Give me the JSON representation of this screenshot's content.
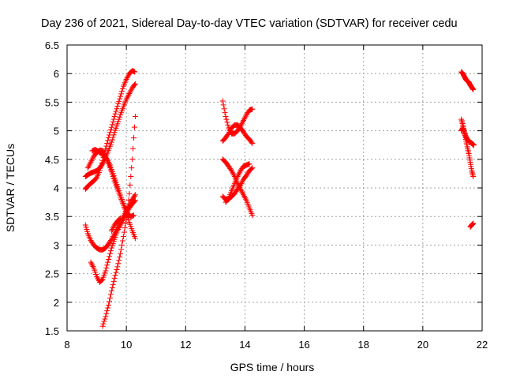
{
  "chart_data": {
    "type": "scatter",
    "title": "Day 236 of 2021, Sidereal Day-to-day VTEC variation (SDTVAR) for receiver cedu",
    "xlabel": "GPS time / hours",
    "ylabel": "SDTVAR / TECUs",
    "xlim": [
      8,
      22
    ],
    "ylim": [
      1.5,
      6.5
    ],
    "xticks": [
      "8",
      "10",
      "12",
      "14",
      "16",
      "18",
      "20",
      "22"
    ],
    "yticks": [
      "1.5",
      "2",
      "2.5",
      "3",
      "3.5",
      "4",
      "4.5",
      "5",
      "5.5",
      "6",
      "6.5"
    ],
    "grid": true,
    "marker": "plus",
    "color": "#ff0000",
    "series": [
      {
        "x": [
          8.62,
          8.7,
          8.8,
          8.9,
          9.0,
          9.1,
          9.2,
          9.3,
          9.4,
          9.5,
          9.6,
          9.7,
          9.8,
          9.9,
          10.0,
          10.1,
          10.2,
          10.28
        ],
        "y": [
          3.98,
          4.03,
          4.08,
          4.12,
          4.18,
          4.3,
          4.48,
          4.68,
          4.88,
          5.06,
          5.25,
          5.43,
          5.6,
          5.78,
          5.9,
          6.0,
          6.05,
          6.03
        ]
      },
      {
        "x": [
          8.62,
          8.7,
          8.8,
          8.9,
          9.0,
          9.1,
          9.2,
          9.3,
          9.4,
          9.5,
          9.6,
          9.7,
          9.8,
          9.9,
          10.0,
          10.1,
          10.2,
          10.3
        ],
        "y": [
          4.2,
          4.23,
          4.26,
          4.28,
          4.3,
          4.35,
          4.42,
          4.53,
          4.66,
          4.8,
          4.97,
          5.12,
          5.28,
          5.42,
          5.55,
          5.65,
          5.75,
          5.82
        ]
      },
      {
        "x": [
          8.7,
          8.8,
          8.9,
          9.0,
          9.1,
          9.2,
          9.3,
          9.4,
          9.5,
          9.6,
          9.7,
          9.8,
          9.9,
          10.0,
          10.1,
          10.2,
          10.3
        ],
        "y": [
          4.35,
          4.45,
          4.55,
          4.62,
          4.66,
          4.65,
          4.55,
          4.42,
          4.28,
          4.12,
          3.98,
          3.84,
          3.7,
          3.56,
          3.4,
          3.25,
          3.12
        ]
      },
      {
        "x": [
          8.85,
          8.95,
          9.05,
          9.15,
          9.25,
          9.35,
          9.45,
          9.55,
          9.65,
          9.75,
          9.85,
          9.95,
          10.05,
          10.15,
          10.25
        ],
        "y": [
          4.65,
          4.67,
          4.64,
          4.6,
          4.56,
          4.5,
          4.4,
          4.25,
          4.1,
          3.95,
          3.8,
          3.66,
          3.55,
          3.5,
          3.52
        ]
      },
      {
        "x": [
          8.62,
          8.7,
          8.8,
          8.9,
          9.0,
          9.1,
          9.2,
          9.3,
          9.4,
          9.5,
          9.6,
          9.7,
          9.8,
          9.9,
          10.0,
          10.1,
          10.2,
          10.3
        ],
        "y": [
          3.35,
          3.2,
          3.08,
          3.0,
          2.95,
          2.92,
          2.92,
          2.95,
          3.02,
          3.1,
          3.2,
          3.3,
          3.4,
          3.5,
          3.6,
          3.7,
          3.8,
          3.88
        ]
      },
      {
        "x": [
          8.8,
          8.9,
          9.0,
          9.1,
          9.2,
          9.3,
          9.4,
          9.5,
          9.6,
          9.7,
          9.8,
          9.9,
          10.0,
          10.1,
          10.2,
          10.3
        ],
        "y": [
          2.7,
          2.6,
          2.45,
          2.35,
          2.4,
          2.55,
          2.75,
          2.95,
          3.1,
          3.25,
          3.35,
          3.45,
          3.55,
          3.65,
          3.72,
          3.78
        ]
      },
      {
        "x": [
          9.2,
          9.3,
          9.4,
          9.5,
          9.6,
          9.7,
          9.8,
          9.9,
          10.0,
          10.1,
          10.2,
          10.3
        ],
        "y": [
          1.58,
          1.75,
          1.95,
          2.2,
          2.42,
          2.62,
          2.85,
          3.15,
          3.45,
          3.9,
          4.5,
          5.25
        ]
      },
      {
        "x": [
          9.5,
          9.6,
          9.7,
          9.8
        ],
        "y": [
          3.25,
          3.35,
          3.42,
          3.47
        ]
      },
      {
        "x": [
          13.25,
          13.35,
          13.45,
          13.55,
          13.65,
          13.75,
          13.85,
          13.95,
          14.05,
          14.15,
          14.25
        ],
        "y": [
          5.52,
          5.25,
          5.05,
          4.95,
          4.95,
          5.0,
          5.08,
          5.18,
          5.28,
          5.36,
          5.38
        ]
      },
      {
        "x": [
          13.25,
          13.35,
          13.45,
          13.55,
          13.65,
          13.75,
          13.85,
          13.95,
          14.05,
          14.15,
          14.25
        ],
        "y": [
          4.82,
          4.88,
          4.95,
          5.05,
          5.1,
          5.1,
          5.05,
          4.98,
          4.9,
          4.85,
          4.78
        ]
      },
      {
        "x": [
          13.25,
          13.35,
          13.45,
          13.55,
          13.65,
          13.75,
          13.85,
          13.95,
          14.05,
          14.15,
          14.25
        ],
        "y": [
          4.5,
          4.45,
          4.38,
          4.3,
          4.2,
          4.08,
          3.98,
          3.88,
          3.78,
          3.65,
          3.52
        ]
      },
      {
        "x": [
          13.25,
          13.35,
          13.45,
          13.55,
          13.65,
          13.75,
          13.85,
          13.95,
          14.05,
          14.15,
          14.25
        ],
        "y": [
          3.85,
          3.8,
          3.8,
          3.85,
          3.9,
          3.98,
          4.05,
          4.15,
          4.22,
          4.3,
          4.35
        ]
      },
      {
        "x": [
          13.35,
          13.45,
          13.55,
          13.65,
          13.75,
          13.85,
          13.95,
          14.05,
          14.15
        ],
        "y": [
          3.75,
          3.82,
          3.95,
          4.08,
          4.2,
          4.3,
          4.38,
          4.4,
          4.42
        ]
      },
      {
        "x": [
          21.3,
          21.35,
          21.4,
          21.45,
          21.5,
          21.55,
          21.6,
          21.65,
          21.7
        ],
        "y": [
          6.03,
          6.0,
          5.95,
          5.9,
          5.87,
          5.85,
          5.8,
          5.76,
          5.72
        ]
      },
      {
        "x": [
          21.3,
          21.35,
          21.4,
          21.45,
          21.5,
          21.55,
          21.6,
          21.65,
          21.7,
          21.72
        ],
        "y": [
          5.2,
          5.1,
          4.98,
          4.9,
          4.85,
          4.82,
          4.8,
          4.78,
          4.76,
          4.75
        ]
      },
      {
        "x": [
          21.3,
          21.35,
          21.4,
          21.45,
          21.5,
          21.55,
          21.6,
          21.65,
          21.7
        ],
        "y": [
          5.0,
          5.05,
          4.98,
          4.85,
          4.72,
          4.6,
          4.45,
          4.3,
          4.2
        ]
      },
      {
        "x": [
          21.6,
          21.65,
          21.7
        ],
        "y": [
          3.32,
          3.35,
          3.38
        ]
      }
    ]
  }
}
